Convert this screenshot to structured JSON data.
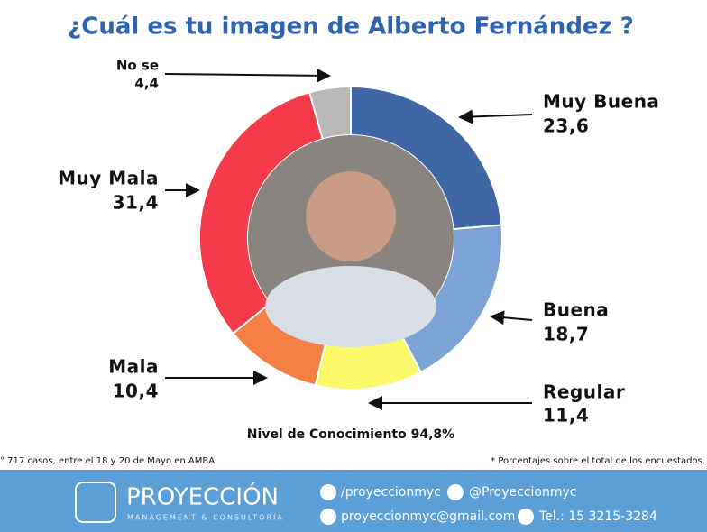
{
  "chart_data": {
    "type": "donut",
    "title": "¿Cuál es tu imagen de Alberto Fernández ?",
    "categories": [
      "Muy Buena",
      "Buena",
      "Regular",
      "Mala",
      "Muy Mala",
      "No se"
    ],
    "values": [
      23.6,
      18.7,
      11.4,
      10.4,
      31.4,
      4.4
    ],
    "value_labels": [
      "23,6",
      "18,7",
      "11,4",
      "10,4",
      "31,4",
      "4,4"
    ],
    "colors": [
      "#3f67a6",
      "#7ba3d4",
      "#fbf86a",
      "#f58045",
      "#f53a4a",
      "#b8b8b8"
    ],
    "annotation": "Nivel de Conocimiento 94,8%",
    "source": "° 717 casos, entre el 18 y 20 de Mayo en AMBA",
    "note": "* Porcentajes sobre el total de los encuestados.",
    "footer": {
      "brand": "PROYECCIÓN",
      "tagline": "MANAGEMENT & CONSULTORÍA",
      "facebook": "/proyeccionmyc",
      "twitter": "@Proyeccionmyc",
      "email": "proyeccionmyc@gmail.com",
      "phone": "Tel.: 15 3215-3284"
    }
  }
}
